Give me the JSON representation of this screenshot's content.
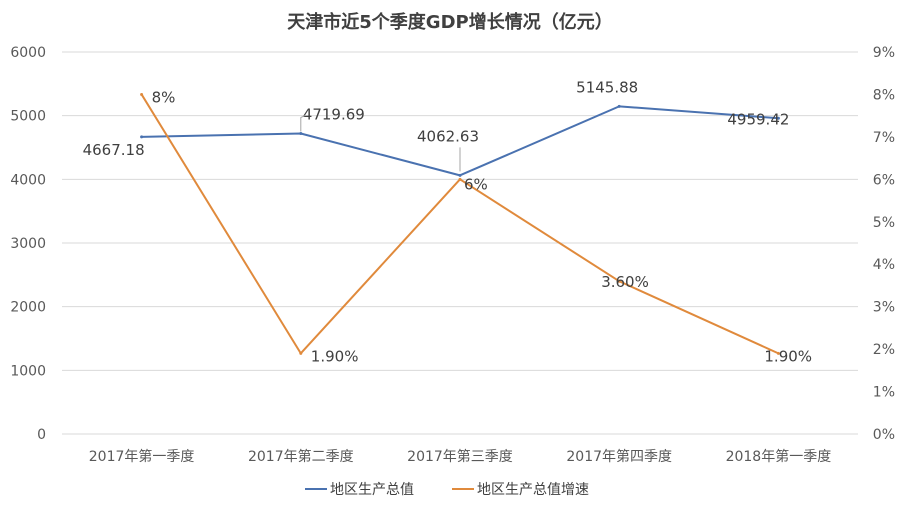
{
  "chart_data": {
    "type": "line",
    "title": "天津市近5个季度GDP增长情况（亿元）",
    "categories": [
      "2017年第一季度",
      "2017年第二季度",
      "2017年第三季度",
      "2017年第四季度",
      "2018年第一季度"
    ],
    "series": [
      {
        "name": "地区生产总值",
        "axis": "left",
        "color": "#4a72b0",
        "values": [
          4667.18,
          4719.69,
          4062.63,
          5145.88,
          4959.42
        ],
        "labels": [
          "4667.18",
          "4719.69",
          "4062.63",
          "5145.88",
          "4959.42"
        ]
      },
      {
        "name": "地区生产总值增速",
        "axis": "right",
        "color": "#e08a3c",
        "values": [
          8,
          1.9,
          6,
          3.6,
          1.9
        ],
        "labels": [
          "8%",
          "1.90%",
          "6%",
          "3.60%",
          "1.90%"
        ]
      }
    ],
    "y_left": {
      "ylim": [
        0,
        6000
      ],
      "ticks": [
        "0",
        "1000",
        "2000",
        "3000",
        "4000",
        "5000",
        "6000"
      ]
    },
    "y_right": {
      "ylim": [
        0,
        9
      ],
      "ticks": [
        "0%",
        "1%",
        "2%",
        "3%",
        "4%",
        "5%",
        "6%",
        "7%",
        "8%",
        "9%"
      ]
    },
    "grid": true,
    "legend_position": "bottom"
  }
}
